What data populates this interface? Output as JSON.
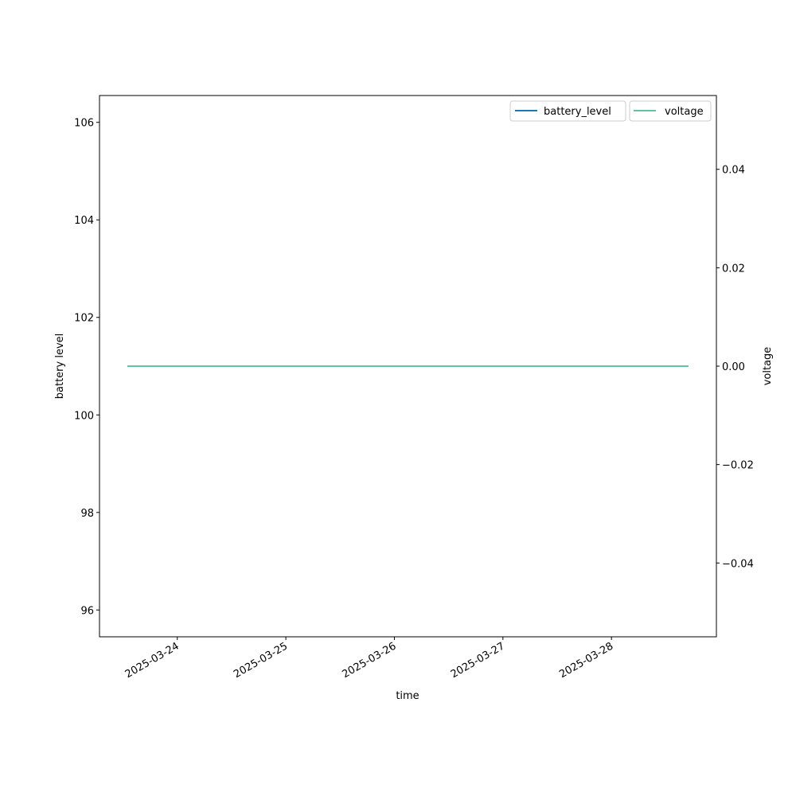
{
  "chart_data": {
    "type": "line",
    "xlabel": "time",
    "ylabel_left": "battery level",
    "ylabel_right": "voltage",
    "x_ticks": [
      "2025-03-24",
      "2025-03-25",
      "2025-03-26",
      "2025-03-27",
      "2025-03-28"
    ],
    "x_range": [
      "2025-03-23T13:00",
      "2025-03-28T17:00"
    ],
    "y_left_ticks": [
      96,
      98,
      100,
      102,
      104,
      106
    ],
    "y_left_range": [
      95.45,
      106.55
    ],
    "y_right_ticks": [
      -0.04,
      -0.02,
      0.0,
      0.02,
      0.04
    ],
    "y_right_tick_labels": [
      "−0.04",
      "−0.02",
      "0.00",
      "0.02",
      "0.04"
    ],
    "y_right_range": [
      -0.055,
      0.055
    ],
    "grid": false,
    "series": [
      {
        "name": "battery_level",
        "axis": "left",
        "color": "#1f77b4",
        "x": [
          "2025-03-23T13:00",
          "2025-03-28T17:00"
        ],
        "y": [
          101,
          101
        ]
      },
      {
        "name": "voltage",
        "axis": "right",
        "color": "#66c2a5",
        "x": [
          "2025-03-23T13:00",
          "2025-03-28T17:00"
        ],
        "y": [
          0,
          0
        ]
      }
    ],
    "legends": [
      {
        "placement": "upper-right",
        "entries": [
          "battery_level"
        ]
      },
      {
        "placement": "upper-right",
        "entries": [
          "voltage"
        ]
      }
    ]
  }
}
